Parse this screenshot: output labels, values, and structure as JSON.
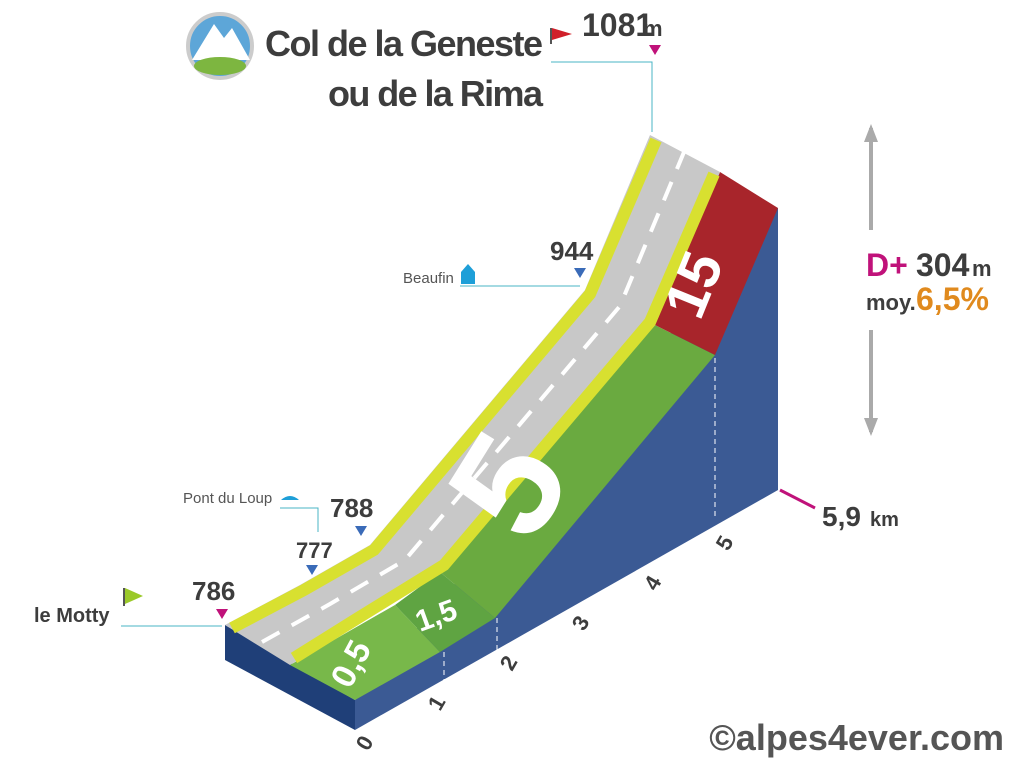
{
  "header": {
    "title": [
      "Col de la Geneste",
      "ou de la Rima"
    ]
  },
  "summit": {
    "altitude": "1081",
    "unit": "m"
  },
  "waypoints": [
    {
      "label": "le Motty",
      "altitude": "786"
    },
    {
      "label": "Pont du Loup",
      "altitude": "777",
      "altitude_after": "788"
    },
    {
      "label": "Beaufin",
      "altitude": "944"
    }
  ],
  "stats": {
    "gain_label": "D+",
    "gain": "304",
    "gain_unit": "m",
    "average_label": "moy.",
    "average": "6,5%"
  },
  "distance": {
    "value": "5,9",
    "unit": "km"
  },
  "km_ticks": [
    "0",
    "1",
    "2",
    "3",
    "4",
    "5"
  ],
  "gradients": [
    "0,5",
    "1,5",
    "5",
    "15"
  ],
  "credit": "©alpes4ever.com"
}
